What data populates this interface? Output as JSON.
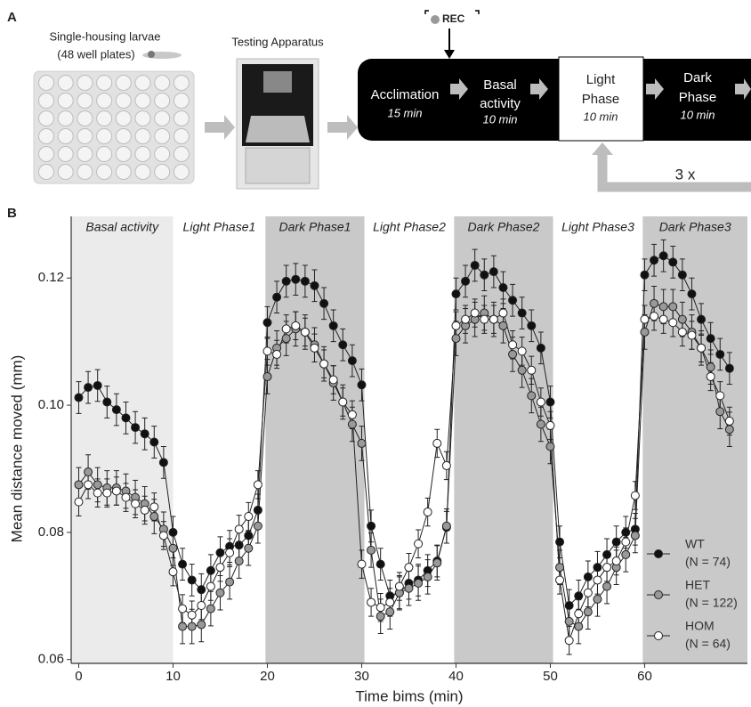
{
  "panel_a": {
    "label": "A",
    "plate_label": [
      "Single-housing larvae",
      "(48 well plates)"
    ],
    "apparatus_label": "Testing Apparatus",
    "rec": "REC",
    "steps": [
      {
        "name": [
          "Acclimation"
        ],
        "duration": "15 min"
      },
      {
        "name": [
          "Basal",
          "activity"
        ],
        "duration": "10 min"
      },
      {
        "name": [
          "Light",
          "Phase"
        ],
        "duration": "10 min"
      },
      {
        "name": [
          "Dark",
          "Phase"
        ],
        "duration": "10 min"
      }
    ],
    "repeat": "3 x"
  },
  "panel_b": {
    "label": "B"
  },
  "chart_data": {
    "type": "line",
    "x_label": "Time bims (min)",
    "y_label": "Mean distance moved (mm)",
    "x": [
      0,
      1,
      2,
      3,
      4,
      5,
      6,
      7,
      8,
      9,
      10,
      11,
      12,
      13,
      14,
      15,
      16,
      17,
      18,
      19,
      20,
      21,
      22,
      23,
      24,
      25,
      26,
      27,
      28,
      29,
      30,
      31,
      32,
      33,
      34,
      35,
      36,
      37,
      38,
      39,
      40,
      41,
      42,
      43,
      44,
      45,
      46,
      47,
      48,
      49,
      50,
      51,
      52,
      53,
      54,
      55,
      56,
      57,
      58,
      59,
      60,
      61,
      62,
      63,
      64,
      65,
      66,
      67,
      68,
      69
    ],
    "xlim": [
      -0.8,
      70.9
    ],
    "xticks": [
      0,
      10,
      20,
      30,
      40,
      50,
      60
    ],
    "ylim": [
      0.0594,
      0.1297
    ],
    "yticks": [
      0.06,
      0.08,
      {
        "value": 0.1,
        "label": "0.10"
      },
      0.12
    ],
    "regions": [
      {
        "label": "Basal activity",
        "start": -0.8,
        "end": 10,
        "shade": "#ebebeb"
      },
      {
        "label": "Light Phase1",
        "start": 10,
        "end": 19.8,
        "shade": "#ffffff"
      },
      {
        "label": "Dark Phase1",
        "start": 19.8,
        "end": 30.3,
        "shade": "#c9c9c9"
      },
      {
        "label": "Light Phase2",
        "start": 30.3,
        "end": 39.8,
        "shade": "#ffffff"
      },
      {
        "label": "Dark Phase2",
        "start": 39.8,
        "end": 50.3,
        "shade": "#c9c9c9"
      },
      {
        "label": "Light Phase3",
        "start": 50.3,
        "end": 59.8,
        "shade": "#ffffff"
      },
      {
        "label": "Dark Phase3",
        "start": 59.8,
        "end": 70.9,
        "shade": "#c9c9c9"
      }
    ],
    "legend": "lower right",
    "series": [
      {
        "name": "WT",
        "n_label": "(N = 74)",
        "color": "#111111",
        "error": 0.0025,
        "values": [
          0.1012,
          0.1028,
          0.1031,
          0.1005,
          0.0993,
          0.098,
          0.0965,
          0.0955,
          0.0942,
          0.091,
          0.08,
          0.075,
          0.0725,
          0.071,
          0.074,
          0.0768,
          0.0778,
          0.078,
          0.0795,
          0.0835,
          0.113,
          0.117,
          0.1195,
          0.1198,
          0.1195,
          0.1188,
          0.116,
          0.1125,
          0.1095,
          0.107,
          0.1032,
          0.081,
          0.075,
          0.07,
          0.0705,
          0.072,
          0.0725,
          0.074,
          0.0755,
          0.0808,
          0.1175,
          0.1195,
          0.122,
          0.1205,
          0.121,
          0.1185,
          0.1165,
          0.1145,
          0.1125,
          0.109,
          0.1005,
          0.0785,
          0.0685,
          0.07,
          0.073,
          0.0745,
          0.0765,
          0.0785,
          0.08,
          0.0805,
          0.1205,
          0.1228,
          0.1235,
          0.1225,
          0.1205,
          0.1175,
          0.1135,
          0.1105,
          0.108,
          0.1058
        ]
      },
      {
        "name": "HET",
        "n_label": "(N = 122)",
        "color": "#999999",
        "error": 0.0027,
        "values": [
          0.0875,
          0.0895,
          0.0875,
          0.087,
          0.087,
          0.0865,
          0.0855,
          0.0845,
          0.0825,
          0.0805,
          0.0775,
          0.0652,
          0.0652,
          0.0655,
          0.068,
          0.0705,
          0.0722,
          0.0755,
          0.0775,
          0.081,
          0.1045,
          0.109,
          0.1105,
          0.112,
          0.1115,
          0.1095,
          0.1065,
          0.1035,
          0.1005,
          0.097,
          0.094,
          0.0772,
          0.0668,
          0.0675,
          0.0705,
          0.0712,
          0.072,
          0.073,
          0.0752,
          0.081,
          0.1105,
          0.1125,
          0.1135,
          0.1145,
          0.1135,
          0.1125,
          0.108,
          0.1055,
          0.1015,
          0.097,
          0.0935,
          0.0745,
          0.066,
          0.0652,
          0.0675,
          0.0695,
          0.0715,
          0.0745,
          0.0765,
          0.0795,
          0.1115,
          0.116,
          0.1155,
          0.1155,
          0.1135,
          0.1115,
          0.109,
          0.106,
          0.099,
          0.0962
        ]
      },
      {
        "name": "HOM",
        "n_label": "(N = 64)",
        "color": "#ffffff",
        "error": 0.0022,
        "values": [
          0.0848,
          0.0875,
          0.0862,
          0.0862,
          0.0865,
          0.0855,
          0.0845,
          0.0835,
          0.084,
          0.0795,
          0.0738,
          0.068,
          0.067,
          0.0685,
          0.0715,
          0.0745,
          0.0768,
          0.0805,
          0.0825,
          0.0875,
          0.1085,
          0.108,
          0.112,
          0.1125,
          0.1115,
          0.109,
          0.1065,
          0.104,
          0.1005,
          0.0985,
          0.075,
          0.069,
          0.0682,
          0.069,
          0.0715,
          0.0745,
          0.0782,
          0.0832,
          0.094,
          0.0905,
          0.1125,
          0.1135,
          0.1145,
          0.1135,
          0.1135,
          0.1145,
          0.1095,
          0.1085,
          0.1055,
          0.1005,
          0.0968,
          0.0725,
          0.063,
          0.0672,
          0.0705,
          0.0725,
          0.0745,
          0.0755,
          0.0785,
          0.0858,
          0.1135,
          0.114,
          0.1135,
          0.113,
          0.1115,
          0.111,
          0.109,
          0.1045,
          0.1015,
          0.0975
        ]
      }
    ]
  }
}
